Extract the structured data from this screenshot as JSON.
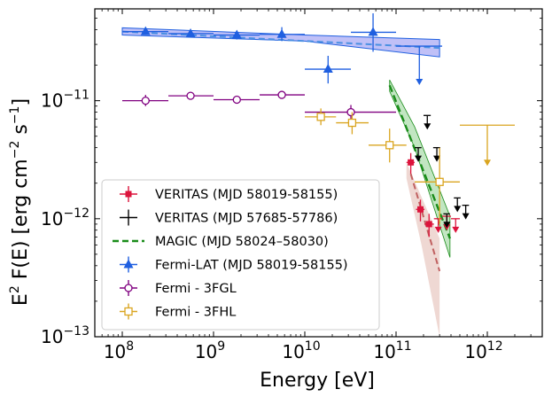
{
  "chart_data": {
    "type": "scatter",
    "title": "",
    "xlabel": "Energy [eV]",
    "ylabel": "E2 F(E) [erg cm−2 s−1]",
    "ylabel_parts": {
      "pre": "E",
      "sq": "2",
      "mid": " F(E) [erg cm",
      "e1": "−2",
      "sp": " s",
      "e2": "−1",
      "post": "]"
    },
    "xscale": "log",
    "yscale": "log",
    "xlim": [
      50000000.0,
      4000000000000.0
    ],
    "ylim": [
      1e-13,
      6e-11
    ],
    "xticks": [
      {
        "value": 100000000.0,
        "base": "10",
        "exp": "8"
      },
      {
        "value": 1000000000.0,
        "base": "10",
        "exp": "9"
      },
      {
        "value": 10000000000.0,
        "base": "10",
        "exp": "10"
      },
      {
        "value": 100000000000.0,
        "base": "10",
        "exp": "11"
      },
      {
        "value": 1000000000000.0,
        "base": "10",
        "exp": "12"
      }
    ],
    "yticks": [
      {
        "value": 1e-11,
        "base": "10",
        "exp": "−11"
      },
      {
        "value": 1e-12,
        "base": "10",
        "exp": "−12"
      },
      {
        "value": 1e-13,
        "base": "10",
        "exp": "−13"
      }
    ],
    "legend_position": "lower-left",
    "colors": {
      "veritas": "#dc143c",
      "veritas_old": "#000000",
      "magic": "#1a8c1a",
      "magic_band": "#8fd18f",
      "fermi_lat": "#1f5fe0",
      "fermi_lat_band": "#8c8cf0",
      "fgl": "#800080",
      "fhl": "#daa520",
      "lat_fit_line": "#4a90e2",
      "pred_band": "#e8c8c0",
      "pred_line": "#c06060"
    },
    "series": [
      {
        "name": "VERITAS (MJD 58019-58155)",
        "key": "veritas",
        "marker": "plus-filled",
        "points": [
          {
            "x": 145000000000.0,
            "y": 3e-12,
            "xerr": [
              130000000000.0,
              160000000000.0
            ],
            "yerr": [
              2.4e-12,
              3.6e-12
            ]
          },
          {
            "x": 185000000000.0,
            "y": 1.2e-12,
            "xerr": [
              165000000000.0,
              205000000000.0
            ],
            "yerr": [
              9.5e-13,
              1.45e-12
            ]
          },
          {
            "x": 230000000000.0,
            "y": 9e-13,
            "xerr": [
              205000000000.0,
              260000000000.0
            ],
            "yerr": [
              7e-13,
              1.1e-12
            ]
          }
        ],
        "upper_limits": [
          {
            "x": 290000000000.0,
            "y": 1e-12,
            "xerr": [
              260000000000.0,
              320000000000.0
            ]
          },
          {
            "x": 360000000000.0,
            "y": 1.05e-12,
            "xerr": [
              320000000000.0,
              400000000000.0
            ]
          },
          {
            "x": 450000000000.0,
            "y": 1e-12,
            "xerr": [
              400000000000.0,
              500000000000.0
            ]
          }
        ]
      },
      {
        "name": "VERITAS (MJD 57685-57786)",
        "key": "veritas_old",
        "marker": "plus",
        "upper_limits": [
          {
            "x": 220000000000.0,
            "y": 7.5e-12,
            "xerr": [
              200000000000.0,
              240000000000.0
            ]
          },
          {
            "x": 175000000000.0,
            "y": 4e-12,
            "xerr": [
              160000000000.0,
              190000000000.0
            ]
          },
          {
            "x": 280000000000.0,
            "y": 4e-12,
            "xerr": [
              255000000000.0,
              305000000000.0
            ]
          },
          {
            "x": 470000000000.0,
            "y": 1.5e-12,
            "xerr": [
              430000000000.0,
              510000000000.0
            ]
          },
          {
            "x": 580000000000.0,
            "y": 1.3e-12,
            "xerr": [
              530000000000.0,
              630000000000.0
            ]
          },
          {
            "x": 360000000000.0,
            "y": 1.1e-12,
            "xerr": [
              330000000000.0,
              390000000000.0
            ]
          }
        ]
      },
      {
        "name": "MAGIC (MJD 58024–58030)",
        "key": "magic",
        "type": "fit",
        "line": [
          {
            "x": 85000000000.0,
            "y": 1.35e-11
          },
          {
            "x": 390000000000.0,
            "y": 6.8e-13
          }
        ],
        "band_upper": [
          {
            "x": 85000000000.0,
            "y": 1.5e-11
          },
          {
            "x": 160000000000.0,
            "y": 6e-12
          },
          {
            "x": 390000000000.0,
            "y": 1.05e-12
          }
        ],
        "band_lower": [
          {
            "x": 85000000000.0,
            "y": 1.2e-11
          },
          {
            "x": 160000000000.0,
            "y": 4e-12
          },
          {
            "x": 390000000000.0,
            "y": 4.7e-13
          }
        ]
      },
      {
        "name": "Fermi-LAT (MJD 58019-58155)",
        "key": "fermi_lat",
        "marker": "triangle-up",
        "points": [
          {
            "x": 180000000.0,
            "y": 3.85e-11,
            "xerr": [
              100000000.0,
              320000000.0
            ],
            "yerr": [
              3.6e-11,
              4.1e-11
            ]
          },
          {
            "x": 560000000.0,
            "y": 3.7e-11,
            "xerr": [
              320000000.0,
              1000000000.0
            ],
            "yerr": [
              3.5e-11,
              3.9e-11
            ]
          },
          {
            "x": 1800000000.0,
            "y": 3.6e-11,
            "xerr": [
              1000000000.0,
              3200000000.0
            ],
            "yerr": [
              3.3e-11,
              3.9e-11
            ]
          },
          {
            "x": 5600000000.0,
            "y": 3.65e-11,
            "xerr": [
              3200000000.0,
              10000000000.0
            ],
            "yerr": [
              3.2e-11,
              4.2e-11
            ]
          },
          {
            "x": 18000000000.0,
            "y": 1.85e-11,
            "xerr": [
              10000000000.0,
              32000000000.0
            ],
            "yerr": [
              1.4e-11,
              2.4e-11
            ]
          },
          {
            "x": 56000000000.0,
            "y": 3.8e-11,
            "xerr": [
              32000000000.0,
              100000000000.0
            ],
            "yerr": [
              2.6e-11,
              5.5e-11
            ]
          }
        ],
        "upper_limits": [
          {
            "x": 180000000000.0,
            "y": 2.9e-11,
            "xerr": [
              100000000000.0,
              320000000000.0
            ]
          }
        ]
      },
      {
        "name": "Fermi - 3FGL",
        "key": "fgl",
        "marker": "circle-open",
        "points": [
          {
            "x": 180000000.0,
            "y": 1e-11,
            "xerr": [
              100000000.0,
              320000000.0
            ],
            "yerr": [
              9e-12,
              1.12e-11
            ]
          },
          {
            "x": 560000000.0,
            "y": 1.1e-11,
            "xerr": [
              320000000.0,
              1000000000.0
            ],
            "yerr": [
              1.04e-11,
              1.17e-11
            ]
          },
          {
            "x": 1800000000.0,
            "y": 1.02e-11,
            "xerr": [
              1000000000.0,
              3200000000.0
            ],
            "yerr": [
              9.6e-12,
              1.08e-11
            ]
          },
          {
            "x": 5600000000.0,
            "y": 1.12e-11,
            "xerr": [
              3200000000.0,
              10000000000.0
            ],
            "yerr": [
              1.05e-11,
              1.19e-11
            ]
          },
          {
            "x": 32000000000.0,
            "y": 8e-12,
            "xerr": [
              10000000000.0,
              100000000000.0
            ],
            "yerr": [
              7e-12,
              9.2e-12
            ]
          }
        ]
      },
      {
        "name": "Fermi - 3FHL",
        "key": "fhl",
        "marker": "square-open",
        "points": [
          {
            "x": 15000000000.0,
            "y": 7.3e-12,
            "xerr": [
              10000000000.0,
              22000000000.0
            ],
            "yerr": [
              6.2e-12,
              8.6e-12
            ]
          },
          {
            "x": 33000000000.0,
            "y": 6.5e-12,
            "xerr": [
              22000000000.0,
              50000000000.0
            ],
            "yerr": [
              5.2e-12,
              8e-12
            ]
          },
          {
            "x": 85000000000.0,
            "y": 4.2e-12,
            "xerr": [
              50000000000.0,
              130000000000.0
            ],
            "yerr": [
              3e-12,
              5.8e-12
            ]
          },
          {
            "x": 300000000000.0,
            "y": 2.05e-12,
            "xerr": [
              160000000000.0,
              500000000000.0
            ],
            "yerr": [
              9e-13,
              4e-12
            ]
          }
        ],
        "upper_limits": [
          {
            "x": 1000000000000.0,
            "y": 6.2e-12,
            "xerr": [
              500000000000.0,
              2000000000000.0
            ]
          }
        ]
      }
    ],
    "lat_fit": {
      "line": [
        {
          "x": 100000000.0,
          "y": 3.85e-11
        },
        {
          "x": 300000000000.0,
          "y": 2.8e-11
        }
      ],
      "band_upper": [
        {
          "x": 100000000.0,
          "y": 4.15e-11
        },
        {
          "x": 10000000000.0,
          "y": 3.6e-11
        },
        {
          "x": 300000000000.0,
          "y": 3.3e-11
        }
      ],
      "band_lower": [
        {
          "x": 100000000.0,
          "y": 3.6e-11
        },
        {
          "x": 10000000000.0,
          "y": 3.2e-11
        },
        {
          "x": 300000000000.0,
          "y": 2.35e-11
        }
      ]
    },
    "pred_fit": {
      "line": [
        {
          "x": 145000000000.0,
          "y": 2.4e-12
        },
        {
          "x": 300000000000.0,
          "y": 3.6e-13
        }
      ],
      "band_upper": [
        {
          "x": 130000000000.0,
          "y": 3e-12
        },
        {
          "x": 300000000000.0,
          "y": 6.8e-13
        }
      ],
      "band_lower": [
        {
          "x": 130000000000.0,
          "y": 2.2e-12
        },
        {
          "x": 190000000000.0,
          "y": 6e-13
        },
        {
          "x": 300000000000.0,
          "y": 1e-13
        }
      ]
    }
  }
}
